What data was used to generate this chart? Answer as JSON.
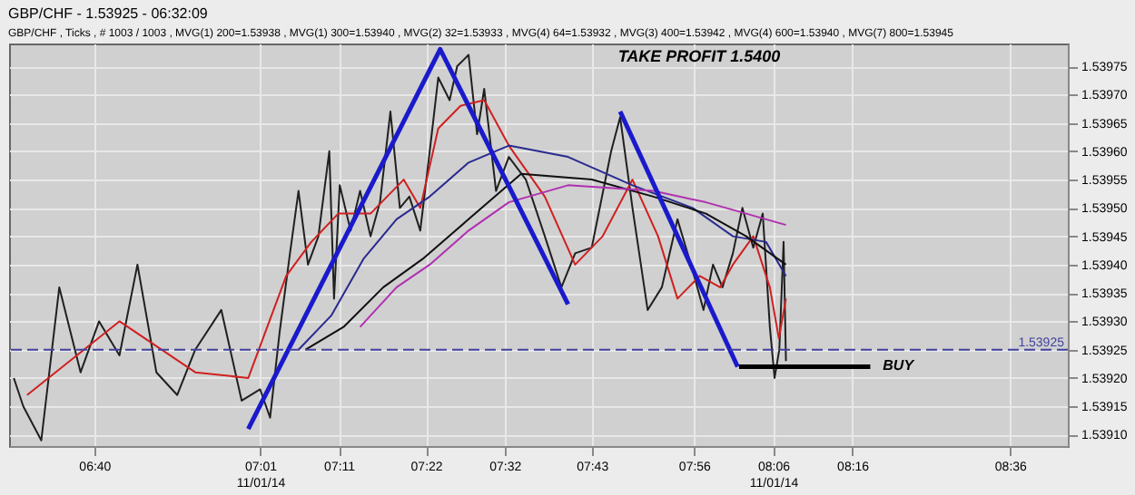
{
  "chart_data": {
    "type": "line",
    "title": "GBP/CHF - 1.53925 - 06:32:09",
    "subtitle": "GBP/CHF , Ticks , # 1003 / 1003 , MVG(1) 200=1.53938 , MVG(1) 300=1.53940 , MVG(2) 32=1.53933 , MVG(4) 64=1.53932 , MVG(3) 400=1.53942 , MVG(4) 600=1.53940 , MVG(7) 800=1.53945",
    "xlim": [
      6.487,
      8.722
    ],
    "xticks": [
      {
        "value": 6.667,
        "label": "06:40"
      },
      {
        "value": 7.017,
        "label": "07:01\n11/01/14"
      },
      {
        "value": 7.183,
        "label": "07:11"
      },
      {
        "value": 7.367,
        "label": "07:22"
      },
      {
        "value": 7.533,
        "label": "07:32"
      },
      {
        "value": 7.717,
        "label": "07:43"
      },
      {
        "value": 7.933,
        "label": "07:56"
      },
      {
        "value": 8.1,
        "label": "08:06\n11/01/14"
      },
      {
        "value": 8.267,
        "label": "08:16"
      },
      {
        "value": 8.6,
        "label": "08:36"
      }
    ],
    "ylim": [
      1.53908,
      1.53979
    ],
    "yticks": [
      {
        "value": 1.5391,
        "label": "1.53910"
      },
      1.53915,
      {
        "value": 1.5392,
        "label": "1.53920"
      },
      1.53925,
      {
        "value": 1.5393,
        "label": "1.53930"
      },
      1.53935,
      {
        "value": 1.5394,
        "label": "1.53940"
      },
      1.53945,
      {
        "value": 1.5395,
        "label": "1.53950"
      },
      1.53955,
      {
        "value": 1.5396,
        "label": "1.53960"
      },
      1.53965,
      {
        "value": 1.5397,
        "label": "1.53970"
      },
      1.53975
    ],
    "grid": true,
    "line_style": "solid",
    "marker": "none",
    "series": [
      {
        "color": "#202020",
        "x": [
          6.497,
          6.517,
          6.555,
          6.593,
          6.638,
          6.677,
          6.72,
          6.758,
          6.798,
          6.842,
          6.88,
          6.935,
          6.978,
          7.017,
          7.038,
          7.058,
          7.08,
          7.098,
          7.118,
          7.14,
          7.163,
          7.173,
          7.185,
          7.208,
          7.228,
          7.25,
          7.27,
          7.292,
          7.312,
          7.332,
          7.355,
          7.375,
          7.393,
          7.417,
          7.433,
          7.457,
          7.475,
          7.49,
          7.515,
          7.542,
          7.578,
          7.618,
          7.653,
          7.682,
          7.717,
          7.758,
          7.777,
          7.803,
          7.835,
          7.865,
          7.898,
          7.93,
          7.953,
          7.973,
          7.993,
          8.015,
          8.035,
          8.058,
          8.078,
          8.093,
          8.103,
          8.113,
          8.122,
          8.127
        ],
        "values": [
          1.5392,
          1.53915,
          1.53909,
          1.53936,
          1.53921,
          1.5393,
          1.53924,
          1.5394,
          1.53921,
          1.53917,
          1.53925,
          1.53932,
          1.53916,
          1.53918,
          1.53913,
          1.53928,
          1.53942,
          1.53953,
          1.5394,
          1.53945,
          1.5396,
          1.53934,
          1.53954,
          1.53946,
          1.53953,
          1.53945,
          1.53951,
          1.53967,
          1.5395,
          1.53952,
          1.53946,
          1.5396,
          1.53973,
          1.53969,
          1.53975,
          1.53977,
          1.53963,
          1.53971,
          1.53953,
          1.53959,
          1.53955,
          1.53945,
          1.53936,
          1.53942,
          1.53943,
          1.5396,
          1.53966,
          1.5395,
          1.53932,
          1.53936,
          1.53948,
          1.53939,
          1.53932,
          1.5394,
          1.53936,
          1.53942,
          1.5395,
          1.53943,
          1.53949,
          1.53929,
          1.5392,
          1.53925,
          1.53944,
          1.53923
        ]
      },
      {
        "color": "#d02020",
        "x": [
          6.525,
          6.72,
          6.88,
          6.992,
          7.072,
          7.125,
          7.182,
          7.25,
          7.32,
          7.355,
          7.393,
          7.44,
          7.49,
          7.542,
          7.618,
          7.682,
          7.74,
          7.803,
          7.857,
          7.898,
          7.945,
          7.988,
          8.015,
          8.058,
          8.093,
          8.112,
          8.127
        ],
        "values": [
          1.53917,
          1.5393,
          1.53921,
          1.5392,
          1.53938,
          1.53944,
          1.53949,
          1.53949,
          1.53955,
          1.5395,
          1.53964,
          1.53968,
          1.53969,
          1.53961,
          1.53952,
          1.5394,
          1.53945,
          1.53955,
          1.53945,
          1.53934,
          1.53938,
          1.53936,
          1.5394,
          1.53945,
          1.53936,
          1.53927,
          1.53934
        ]
      },
      {
        "color": "#2a2a90",
        "x": [
          7.098,
          7.167,
          7.235,
          7.305,
          7.375,
          7.457,
          7.542,
          7.667,
          7.803,
          7.93,
          8.015,
          8.085,
          8.127
        ],
        "values": [
          1.53925,
          1.53931,
          1.53941,
          1.53948,
          1.53952,
          1.53958,
          1.53961,
          1.53959,
          1.53954,
          1.5395,
          1.53945,
          1.53944,
          1.53938
        ]
      },
      {
        "color": "#101010",
        "x": [
          7.113,
          7.193,
          7.277,
          7.36,
          7.457,
          7.568,
          7.717,
          7.847,
          7.958,
          8.043,
          8.127
        ],
        "values": [
          1.53925,
          1.53929,
          1.53936,
          1.53941,
          1.53948,
          1.53956,
          1.53955,
          1.53952,
          1.53949,
          1.53945,
          1.5394
        ]
      },
      {
        "color": "#b030b0",
        "x": [
          7.228,
          7.305,
          7.375,
          7.457,
          7.542,
          7.667,
          7.847,
          7.958,
          8.043,
          8.127
        ],
        "values": [
          1.53929,
          1.53936,
          1.5394,
          1.53946,
          1.53951,
          1.53954,
          1.53953,
          1.53951,
          1.53949,
          1.53947
        ]
      },
      {
        "color": "#1a1acc",
        "x": [
          6.992,
          7.397,
          7.667
        ],
        "values": [
          1.53911,
          1.53978,
          1.53933
        ]
      },
      {
        "color": "#1a1acc",
        "x": [
          7.777,
          8.025
        ],
        "values": [
          1.53967,
          1.53922
        ]
      },
      {
        "color": "#000000",
        "x": [
          8.028,
          8.305
        ],
        "values": [
          1.53922,
          1.53922
        ]
      }
    ],
    "ref_lines": [
      {
        "axis": "y",
        "value": 1.53925,
        "label": "1.53925",
        "color": "#4040a0",
        "line_style": "dashed"
      }
    ],
    "annotations": [
      "TAKE PROFIT 1.5400",
      {
        "text": "BUY",
        "x": 8.32,
        "y": 1.53922
      }
    ]
  }
}
